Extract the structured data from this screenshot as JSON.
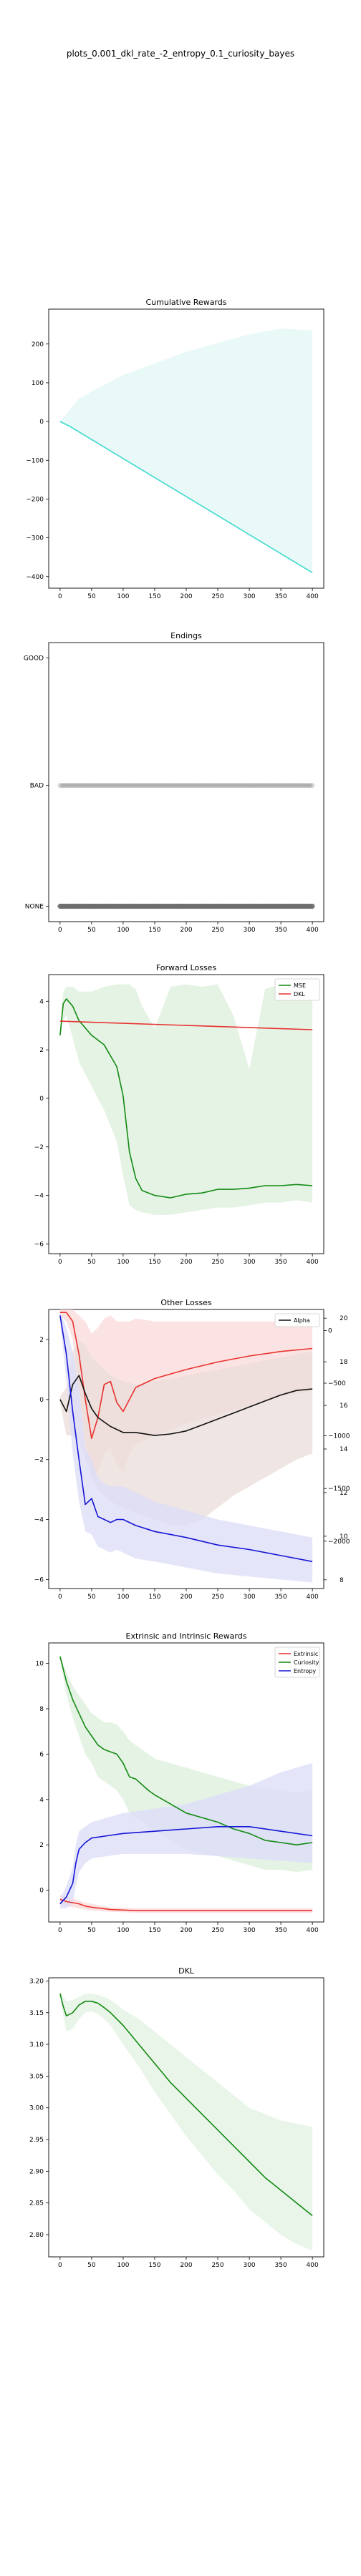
{
  "figure": {
    "suptitle": "plots_0.001_dkl_rate_-2_entropy_0.1_curiosity_bayes"
  },
  "colors": {
    "cyan": "#3fd9cf",
    "green": "#138a13",
    "red": "#e8322e",
    "blue": "#1515d6",
    "black": "#111111",
    "gray": "#6e6e6e"
  },
  "chart_data": [
    {
      "id": "rewards",
      "type": "line",
      "title": "Cumulative Rewards",
      "xlim": [
        -18,
        418
      ],
      "ylim": [
        -430,
        290
      ],
      "xticks": [
        0,
        50,
        100,
        150,
        200,
        250,
        300,
        350,
        400
      ],
      "yticks": [
        200,
        100,
        0,
        -100,
        -200,
        -300,
        -400
      ],
      "series": [
        {
          "color": "cyan",
          "band_color": "#e2f7f4",
          "x": [
            0,
            15,
            400
          ],
          "y": [
            0,
            -12,
            -390
          ],
          "band_upper_x": [
            0,
            30,
            100,
            200,
            300,
            350,
            400
          ],
          "band_upper": [
            0,
            60,
            120,
            180,
            225,
            240,
            235
          ],
          "band_lower_x": [
            0,
            400
          ],
          "band_lower": [
            0,
            -390
          ]
        }
      ]
    },
    {
      "id": "endings",
      "type": "scatter",
      "title": "Endings",
      "xlim": [
        -18,
        418
      ],
      "categories": [
        "GOOD",
        "BAD",
        "NONE"
      ],
      "xticks": [
        0,
        50,
        100,
        150,
        200,
        250,
        300,
        350,
        400
      ],
      "rows": [
        {
          "category": "BAD",
          "x_range": [
            0,
            400
          ],
          "opacity": 0.18
        },
        {
          "category": "NONE",
          "x_range": [
            0,
            400
          ],
          "opacity": 0.85
        }
      ]
    },
    {
      "id": "forward",
      "type": "line",
      "title": "Forward Losses",
      "xlim": [
        -18,
        418
      ],
      "ylim": [
        -6.4,
        5.1
      ],
      "xticks": [
        0,
        50,
        100,
        150,
        200,
        250,
        300,
        350,
        400
      ],
      "yticks": [
        4,
        2,
        0,
        -2,
        -4,
        -6
      ],
      "legend": {
        "position": "top-right",
        "entries": [
          {
            "label": "MSE",
            "color": "green"
          },
          {
            "label": "DKL",
            "color": "red"
          }
        ]
      },
      "series": [
        {
          "name": "MSE",
          "color": "green",
          "band_color": "#dcefdc",
          "x": [
            0,
            5,
            10,
            20,
            30,
            50,
            70,
            90,
            100,
            110,
            120,
            130,
            150,
            175,
            200,
            225,
            250,
            275,
            300,
            325,
            350,
            375,
            400
          ],
          "y": [
            2.6,
            3.9,
            4.1,
            3.8,
            3.2,
            2.6,
            2.2,
            1.3,
            0.1,
            -2.2,
            -3.3,
            -3.8,
            -4.0,
            -4.1,
            -3.95,
            -3.9,
            -3.75,
            -3.75,
            -3.7,
            -3.6,
            -3.6,
            -3.55,
            -3.6
          ],
          "band_upper": [
            2.8,
            4.4,
            4.6,
            4.6,
            4.4,
            4.4,
            4.6,
            4.7,
            4.7,
            4.7,
            4.5,
            3.8,
            2.9,
            4.6,
            4.7,
            4.6,
            4.7,
            3.4,
            1.2,
            4.5,
            4.7,
            4.6,
            4.6
          ],
          "band_lower": [
            2.4,
            3.2,
            3.4,
            2.5,
            1.5,
            0.5,
            -0.5,
            -1.8,
            -3.2,
            -4.4,
            -4.6,
            -4.7,
            -4.8,
            -4.8,
            -4.7,
            -4.6,
            -4.5,
            -4.5,
            -4.4,
            -4.3,
            -4.3,
            -4.2,
            -4.3
          ]
        },
        {
          "name": "DKL",
          "color": "red",
          "x": [
            0,
            400
          ],
          "y": [
            3.18,
            2.83
          ]
        }
      ]
    },
    {
      "id": "other",
      "type": "line",
      "title": "Other Losses",
      "xlim": [
        -18,
        418
      ],
      "ylim": [
        -6.3,
        3.0
      ],
      "xticks": [
        0,
        50,
        100,
        150,
        200,
        250,
        300,
        350,
        400
      ],
      "yticks": [
        2,
        0,
        -2,
        -4,
        -6
      ],
      "legend": {
        "position": "top-right",
        "entries": [
          {
            "label": "Alpha",
            "color": "black"
          }
        ]
      },
      "right_axis_a": {
        "ylim": [
          -2450,
          200
        ],
        "ticks": [
          0,
          -500,
          -1000,
          -1500,
          -2000
        ]
      },
      "right_axis_b": {
        "ylim": [
          7.6,
          20.4
        ],
        "ticks": [
          20,
          18,
          16,
          14,
          12,
          10,
          8
        ]
      },
      "series": [
        {
          "color": "red",
          "band_color": "#fbdada",
          "x": [
            0,
            10,
            20,
            30,
            40,
            50,
            60,
            70,
            80,
            90,
            100,
            110,
            120,
            150,
            200,
            250,
            300,
            350,
            400
          ],
          "y": [
            2.9,
            2.9,
            2.6,
            1.5,
            0.0,
            -1.3,
            -0.6,
            0.5,
            0.6,
            -0.1,
            -0.4,
            0.0,
            0.4,
            0.7,
            1.0,
            1.25,
            1.45,
            1.6,
            1.7
          ],
          "band_upper": [
            3.0,
            3.0,
            3.0,
            2.8,
            2.6,
            2.2,
            2.4,
            2.7,
            2.8,
            2.6,
            2.6,
            2.6,
            2.7,
            2.6,
            2.6,
            2.6,
            2.6,
            2.6,
            2.6
          ],
          "band_lower": [
            2.8,
            2.6,
            2.0,
            0.5,
            -1.4,
            -2.6,
            -2.4,
            -1.8,
            -1.6,
            -2.2,
            -2.4,
            -1.8,
            -1.5,
            -1.2,
            -0.8,
            -0.5,
            -0.2,
            0.1,
            0.3
          ]
        },
        {
          "color": "black",
          "band_color": "#e9dcd9",
          "x": [
            0,
            10,
            20,
            30,
            40,
            50,
            60,
            80,
            100,
            120,
            150,
            175,
            200,
            225,
            250,
            275,
            300,
            325,
            350,
            375,
            400
          ],
          "y": [
            0.0,
            -0.4,
            0.5,
            0.8,
            0.2,
            -0.3,
            -0.6,
            -0.9,
            -1.1,
            -1.1,
            -1.2,
            -1.15,
            -1.05,
            -0.85,
            -0.65,
            -0.45,
            -0.25,
            -0.05,
            0.15,
            0.3,
            0.35
          ],
          "band_upper": [
            0.1,
            0.4,
            1.6,
            2.0,
            1.8,
            1.4,
            1.2,
            0.8,
            0.6,
            0.5,
            0.6,
            0.7,
            0.8,
            0.9,
            1.0,
            1.1,
            1.2,
            1.3,
            1.4,
            1.5,
            1.6
          ],
          "band_lower": [
            -0.1,
            -1.2,
            -1.2,
            -1.4,
            -2.0,
            -2.6,
            -3.0,
            -3.4,
            -3.6,
            -3.8,
            -4.0,
            -4.2,
            -4.2,
            -4.0,
            -3.6,
            -3.2,
            -2.9,
            -2.6,
            -2.3,
            -2.0,
            -1.8
          ]
        },
        {
          "color": "blue",
          "band_color": "#dcdcf8",
          "x": [
            0,
            10,
            20,
            30,
            40,
            50,
            60,
            70,
            80,
            90,
            100,
            120,
            150,
            200,
            250,
            300,
            350,
            400
          ],
          "y": [
            2.8,
            1.5,
            -0.4,
            -2.0,
            -3.5,
            -3.3,
            -3.9,
            -4.0,
            -4.1,
            -4.0,
            -4.0,
            -4.2,
            -4.4,
            -4.6,
            -4.85,
            -5.0,
            -5.2,
            -5.4
          ],
          "band_upper": [
            2.9,
            2.4,
            1.6,
            0.4,
            -1.6,
            -2.0,
            -2.6,
            -2.8,
            -2.9,
            -2.9,
            -2.9,
            -3.1,
            -3.4,
            -3.7,
            -4.0,
            -4.2,
            -4.4,
            -4.6
          ],
          "band_lower": [
            2.6,
            0.6,
            -1.8,
            -3.4,
            -4.4,
            -4.5,
            -4.9,
            -5.0,
            -5.1,
            -5.0,
            -5.1,
            -5.3,
            -5.4,
            -5.6,
            -5.8,
            -5.9,
            -6.0,
            -6.1
          ]
        }
      ]
    },
    {
      "id": "intrinsic",
      "type": "line",
      "title": "Extrinsic and Intrinsic Rewards",
      "xlim": [
        -18,
        418
      ],
      "ylim": [
        -1.4,
        10.9
      ],
      "xticks": [
        0,
        50,
        100,
        150,
        200,
        250,
        300,
        350,
        400
      ],
      "yticks": [
        10,
        8,
        6,
        4,
        2,
        0
      ],
      "legend": {
        "position": "top-right",
        "entries": [
          {
            "label": "Extrinsic",
            "color": "red"
          },
          {
            "label": "Curiosity",
            "color": "green"
          },
          {
            "label": "Entropy",
            "color": "blue"
          }
        ]
      },
      "series": [
        {
          "name": "Extrinsic",
          "color": "red",
          "band_color": "#fbdada",
          "x": [
            0,
            10,
            20,
            30,
            40,
            50,
            80,
            120,
            200,
            300,
            400
          ],
          "y": [
            -0.4,
            -0.5,
            -0.55,
            -0.6,
            -0.7,
            -0.75,
            -0.85,
            -0.9,
            -0.9,
            -0.9,
            -0.9
          ],
          "band_upper": [
            -0.2,
            -0.3,
            -0.35,
            -0.45,
            -0.55,
            -0.6,
            -0.75,
            -0.8,
            -0.8,
            -0.8,
            -0.8
          ],
          "band_lower": [
            -0.6,
            -0.7,
            -0.75,
            -0.8,
            -0.85,
            -0.9,
            -0.95,
            -1.0,
            -1.0,
            -1.0,
            -1.0
          ]
        },
        {
          "name": "Curiosity",
          "color": "green",
          "band_color": "#dcefdc",
          "x": [
            0,
            10,
            20,
            30,
            40,
            50,
            60,
            70,
            80,
            90,
            100,
            110,
            120,
            140,
            150,
            175,
            200,
            225,
            250,
            275,
            300,
            325,
            350,
            375,
            400
          ],
          "y": [
            10.3,
            9.2,
            8.4,
            7.8,
            7.2,
            6.8,
            6.4,
            6.2,
            6.1,
            6.0,
            5.6,
            5.0,
            4.9,
            4.4,
            4.2,
            3.8,
            3.4,
            3.2,
            3.0,
            2.7,
            2.5,
            2.2,
            2.1,
            2.0,
            2.1
          ],
          "band_upper": [
            10.4,
            9.6,
            9.0,
            8.6,
            8.2,
            7.8,
            7.6,
            7.4,
            7.4,
            7.3,
            7.0,
            6.6,
            6.4,
            6.0,
            5.8,
            5.6,
            5.4,
            5.2,
            5.0,
            4.8,
            4.6,
            4.5,
            4.4,
            4.3,
            4.4
          ],
          "band_lower": [
            10.2,
            8.6,
            7.6,
            6.8,
            6.0,
            5.6,
            5.0,
            4.8,
            4.6,
            4.4,
            4.0,
            3.4,
            3.2,
            2.8,
            2.6,
            2.2,
            1.8,
            1.6,
            1.5,
            1.3,
            1.1,
            0.9,
            0.9,
            0.8,
            0.9
          ]
        },
        {
          "name": "Entropy",
          "color": "blue",
          "band_color": "#dcdcf8",
          "x": [
            0,
            10,
            20,
            25,
            30,
            40,
            50,
            75,
            100,
            150,
            200,
            250,
            300,
            350,
            400
          ],
          "y": [
            -0.6,
            -0.3,
            0.3,
            1.2,
            1.8,
            2.1,
            2.3,
            2.4,
            2.5,
            2.6,
            2.7,
            2.8,
            2.8,
            2.6,
            2.4
          ],
          "band_upper": [
            -0.4,
            0.2,
            1.0,
            2.0,
            2.6,
            2.8,
            3.0,
            3.2,
            3.4,
            3.6,
            3.8,
            4.2,
            4.6,
            5.2,
            5.6
          ],
          "band_lower": [
            -0.8,
            -0.8,
            -0.6,
            0.2,
            0.8,
            1.2,
            1.4,
            1.5,
            1.6,
            1.6,
            1.6,
            1.5,
            1.4,
            1.3,
            1.2
          ]
        }
      ]
    },
    {
      "id": "dkl",
      "type": "line",
      "title": "DKL",
      "xlim": [
        -18,
        418
      ],
      "ylim": [
        2.765,
        3.205
      ],
      "xticks": [
        0,
        50,
        100,
        150,
        200,
        250,
        300,
        350,
        400
      ],
      "yticks": [
        3.2,
        3.15,
        3.1,
        3.05,
        3.0,
        2.95,
        2.9,
        2.85,
        2.8
      ],
      "ytick_decimals": 2,
      "series": [
        {
          "color": "green",
          "band_color": "#e2f2e2",
          "x": [
            0,
            5,
            10,
            20,
            30,
            40,
            50,
            60,
            70,
            80,
            100,
            125,
            150,
            175,
            200,
            225,
            250,
            275,
            300,
            325,
            350,
            375,
            400
          ],
          "y": [
            3.18,
            3.16,
            3.145,
            3.15,
            3.162,
            3.168,
            3.168,
            3.165,
            3.158,
            3.15,
            3.13,
            3.1,
            3.07,
            3.04,
            3.015,
            2.99,
            2.965,
            2.94,
            2.915,
            2.89,
            2.87,
            2.85,
            2.83
          ],
          "band_upper": [
            3.185,
            3.175,
            3.168,
            3.17,
            3.175,
            3.18,
            3.18,
            3.178,
            3.175,
            3.17,
            3.155,
            3.14,
            3.12,
            3.1,
            3.08,
            3.06,
            3.04,
            3.02,
            3.0,
            2.99,
            2.98,
            2.975,
            2.97
          ],
          "band_lower": [
            3.175,
            3.145,
            3.12,
            3.125,
            3.14,
            3.15,
            3.152,
            3.148,
            3.14,
            3.13,
            3.1,
            3.065,
            3.025,
            2.99,
            2.955,
            2.925,
            2.895,
            2.87,
            2.84,
            2.82,
            2.8,
            2.785,
            2.775
          ]
        }
      ]
    }
  ]
}
